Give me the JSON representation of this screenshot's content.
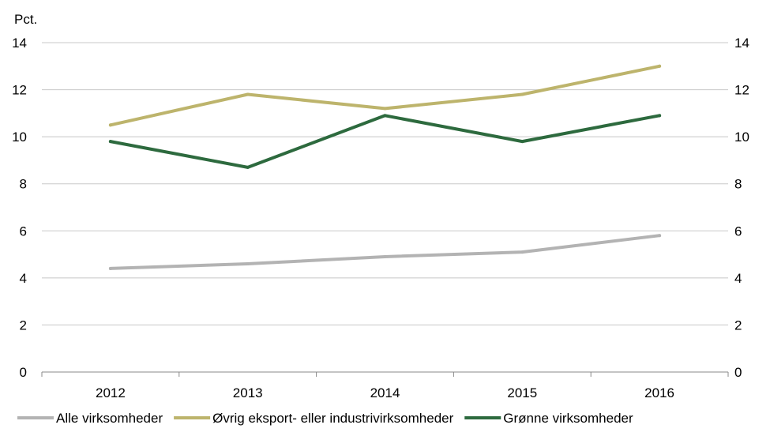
{
  "chart_data": {
    "type": "line",
    "ylabel": "Pct.",
    "categories": [
      "2012",
      "2013",
      "2014",
      "2015",
      "2016"
    ],
    "ylim": [
      0,
      14
    ],
    "yticks": [
      0,
      2,
      4,
      6,
      8,
      10,
      12,
      14
    ],
    "y_axis_both_sides": true,
    "grid": true,
    "legend_position": "bottom",
    "series": [
      {
        "name": "Alle virksomheder",
        "color": "#b3b3b3",
        "values": [
          4.4,
          4.6,
          4.9,
          5.1,
          5.8
        ]
      },
      {
        "name": "Øvrig eksport- eller industrivirksomheder",
        "color": "#bdb46c",
        "values": [
          10.5,
          11.8,
          11.2,
          11.8,
          13.0
        ]
      },
      {
        "name": "Grønne virksomheder",
        "color": "#2d6a3e",
        "values": [
          9.8,
          8.7,
          10.9,
          9.8,
          10.9
        ]
      }
    ]
  }
}
